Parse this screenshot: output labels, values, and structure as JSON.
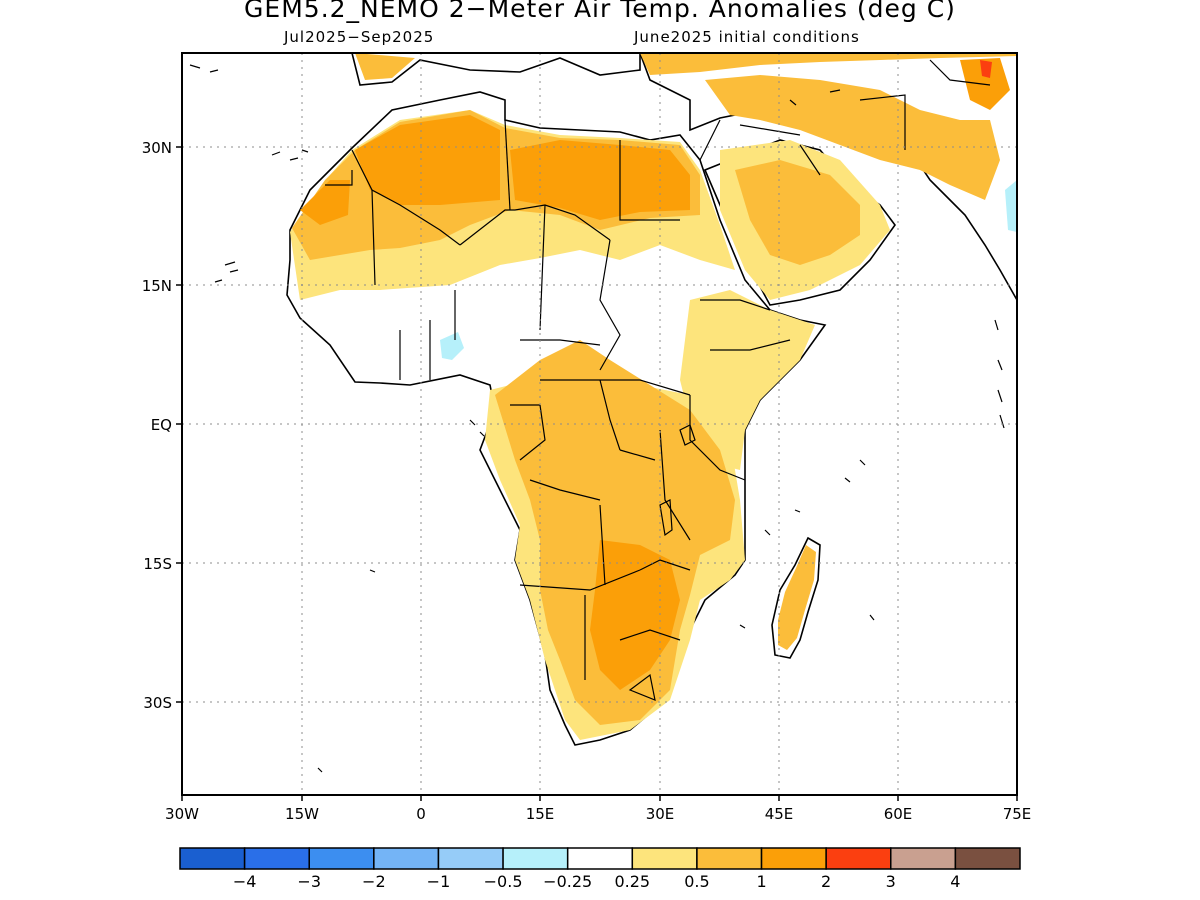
{
  "title": "GEM5.2_NEMO 2−Meter Air Temp. Anomalies (deg C)",
  "subtitle_left": "Jul2025−Sep2025",
  "subtitle_right": "June2025 initial conditions",
  "lon_ticks": [
    "30W",
    "15W",
    "0",
    "15E",
    "30E",
    "45E",
    "60E",
    "75E"
  ],
  "lat_ticks": [
    "30N",
    "15N",
    "EQ",
    "15S",
    "30S"
  ],
  "colorbar": {
    "colors": [
      "#1a5fd0",
      "#2a6fe8",
      "#3c8ef0",
      "#74b4f6",
      "#96ccf8",
      "#b6f0fa",
      "#ffffff",
      "#fde47c",
      "#fbbd3a",
      "#fb9f08",
      "#fb3f10",
      "#c9a090",
      "#7a5040"
    ],
    "labels": [
      "−4",
      "−3",
      "−2",
      "−1",
      "−0.5",
      "−0.25",
      "0.25",
      "0.5",
      "1",
      "2",
      "3",
      "4"
    ]
  },
  "colors": {
    "light_yellow": "#fde47c",
    "light_orange": "#fbbd3a",
    "orange": "#fb9f08",
    "red": "#fb3f10",
    "light_blue": "#b6f0fa",
    "land_neutral": "#ffffff",
    "coast": "#000000"
  }
}
